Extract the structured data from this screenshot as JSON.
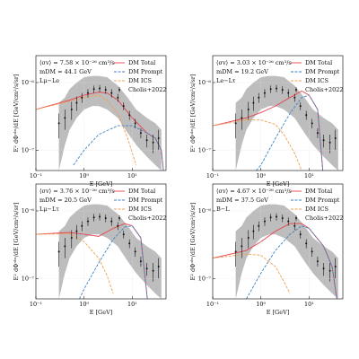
{
  "chart_data": [
    {
      "type": "line",
      "xlabel": "E [GeV]",
      "ylabel": "E² dΦᵒᵇˢ/dE [GeV/cm²/s/sr]",
      "log_x": true,
      "log_y": true,
      "grid": true,
      "legend": "upper right",
      "annotations": [
        "⟨σv⟩ = 7.58 × 10⁻²⁶ cm³/s",
        "mDM = 44.1 GeV",
        "Lμ−Le"
      ],
      "xlim": [
        0.1,
        50
      ],
      "ylim": [
        5e-08,
        2.5e-06
      ],
      "xticks": [
        {
          "value": 0.1,
          "label": "10⁻¹"
        },
        {
          "value": 1,
          "label": "10⁰"
        },
        {
          "value": 10,
          "label": "10¹"
        }
      ],
      "yticks": [
        {
          "value": 1e-07,
          "label": "10⁻⁷"
        },
        {
          "value": 1e-06,
          "label": "10⁻⁶"
        }
      ],
      "band": {
        "color": "#bdbdbd",
        "x": [
          0.3,
          0.4,
          0.5,
          0.7,
          1,
          1.5,
          2,
          3,
          5,
          8,
          12,
          20,
          30,
          40
        ],
        "low": [
          5e-08,
          1.2e-07,
          2e-07,
          3e-07,
          4e-07,
          4.5e-07,
          4.5e-07,
          4e-07,
          3e-07,
          1.8e-07,
          1.2e-07,
          8e-08,
          6e-08,
          5e-08
        ],
        "high": [
          5e-07,
          6e-07,
          8e-07,
          1e-06,
          1.2e-06,
          1.25e-06,
          1.25e-06,
          1.2e-06,
          9e-07,
          6e-07,
          4e-07,
          3e-07,
          2.5e-07,
          2e-07
        ]
      },
      "series": [
        {
          "name": "DM Total",
          "color": "#e8414b",
          "dash": false,
          "x": [
            0.1,
            0.2,
            0.5,
            1,
            2,
            3,
            5,
            10,
            20,
            30,
            40,
            44.1
          ],
          "values": [
            4e-07,
            4.6e-07,
            5.5e-07,
            6.5e-07,
            7.2e-07,
            7e-07,
            5.5e-07,
            3e-07,
            1.8e-07,
            1.5e-07,
            1e-07,
            5e-08
          ]
        },
        {
          "name": "DM Prompt",
          "color": "#3b82c4",
          "dash": true,
          "x": [
            0.6,
            1,
            2,
            5,
            10,
            20,
            30,
            40,
            44.1
          ],
          "values": [
            6e-08,
            1e-07,
            1.7e-07,
            2.3e-07,
            2.3e-07,
            1.8e-07,
            1.5e-07,
            1e-07,
            5e-08
          ]
        },
        {
          "name": "DM ICS",
          "color": "#f0a050",
          "dash": true,
          "x": [
            0.1,
            0.5,
            1,
            2,
            3,
            5,
            8,
            12
          ],
          "values": [
            4e-07,
            5.3e-07,
            6e-07,
            6.5e-07,
            5.5e-07,
            3.5e-07,
            1.5e-07,
            6e-08
          ]
        }
      ],
      "points": {
        "name": "Cholis+2022",
        "color": "#111111",
        "x": [
          0.3,
          0.4,
          0.55,
          0.7,
          0.9,
          1.2,
          1.6,
          2.1,
          2.8,
          3.7,
          5,
          6.6,
          8.7,
          11.5,
          15,
          20,
          27,
          35
        ],
        "values": [
          2.5e-07,
          3e-07,
          4e-07,
          5e-07,
          6e-07,
          7e-07,
          8e-07,
          8.2e-07,
          7.8e-07,
          7e-07,
          6e-07,
          4.5e-07,
          3.3e-07,
          2.5e-07,
          1.8e-07,
          1.4e-07,
          1.3e-07,
          1.5e-07
        ],
        "errors": [
          1e-07,
          1e-07,
          1.2e-07,
          1.2e-07,
          1e-07,
          1e-07,
          1e-07,
          1e-07,
          1e-07,
          1e-07,
          8e-08,
          6e-08,
          5e-08,
          4e-08,
          3e-08,
          3e-08,
          4e-08,
          5e-08
        ]
      }
    },
    {
      "type": "line",
      "xlabel": "E [GeV]",
      "ylabel": "E² dΦᵒᵇˢ/dE [GeV/cm²/s/sr]",
      "log_x": true,
      "log_y": true,
      "grid": true,
      "legend": "upper right",
      "annotations": [
        "⟨σv⟩ = 3.03 × 10⁻²⁶ cm³/s",
        "mDM = 19.2 GeV",
        "Le−Lτ"
      ],
      "xlim": [
        0.1,
        50
      ],
      "ylim": [
        5e-08,
        2.5e-06
      ],
      "xticks": [
        {
          "value": 0.1,
          "label": "10⁻¹"
        },
        {
          "value": 1,
          "label": "10⁰"
        },
        {
          "value": 10,
          "label": "10¹"
        }
      ],
      "yticks": [
        {
          "value": 1e-07,
          "label": "10⁻⁷"
        },
        {
          "value": 1e-06,
          "label": "10⁻⁶"
        }
      ],
      "band": {
        "color": "#bdbdbd",
        "x": [
          0.3,
          0.4,
          0.5,
          0.7,
          1,
          1.5,
          2,
          3,
          5,
          8,
          12,
          20,
          30,
          40
        ],
        "low": [
          5e-08,
          1.2e-07,
          2e-07,
          3e-07,
          4e-07,
          4.5e-07,
          4.5e-07,
          4e-07,
          3e-07,
          1.8e-07,
          1.2e-07,
          8e-08,
          6e-08,
          5e-08
        ],
        "high": [
          5e-07,
          6e-07,
          8e-07,
          1e-06,
          1.2e-06,
          1.25e-06,
          1.25e-06,
          1.2e-06,
          9e-07,
          6e-07,
          4e-07,
          3e-07,
          2.5e-07,
          2e-07
        ]
      },
      "series": [
        {
          "name": "DM Total",
          "color": "#e8414b",
          "dash": false,
          "x": [
            0.1,
            0.5,
            1,
            2,
            4,
            7,
            10,
            15,
            19.2
          ],
          "values": [
            2.3e-07,
            3e-07,
            3.6e-07,
            4.5e-07,
            6e-07,
            7.5e-07,
            6.5e-07,
            4e-07,
            5e-08
          ]
        },
        {
          "name": "DM Prompt",
          "color": "#3b82c4",
          "dash": true,
          "x": [
            0.8,
            1,
            2,
            4,
            7,
            10,
            15,
            19.2
          ],
          "values": [
            5e-08,
            6e-08,
            1.5e-07,
            3.5e-07,
            6e-07,
            6.5e-07,
            4e-07,
            5e-08
          ]
        },
        {
          "name": "DM ICS",
          "color": "#f0a050",
          "dash": true,
          "x": [
            0.1,
            0.5,
            1,
            2,
            3,
            5,
            7
          ],
          "values": [
            2.3e-07,
            2.8e-07,
            2.8e-07,
            2.4e-07,
            1.7e-07,
            9e-08,
            5e-08
          ]
        }
      ],
      "points": {
        "name": "Cholis+2022",
        "color": "#111111",
        "x": [
          0.3,
          0.4,
          0.55,
          0.7,
          0.9,
          1.2,
          1.6,
          2.1,
          2.8,
          3.7,
          5,
          6.6,
          8.7,
          11.5,
          15,
          20,
          27,
          35
        ],
        "values": [
          2.5e-07,
          3e-07,
          4e-07,
          5e-07,
          6e-07,
          7e-07,
          8e-07,
          8.2e-07,
          7.8e-07,
          7e-07,
          6e-07,
          4.5e-07,
          3.3e-07,
          2.5e-07,
          1.8e-07,
          1.4e-07,
          1.3e-07,
          1.5e-07
        ],
        "errors": [
          1e-07,
          1e-07,
          1.2e-07,
          1.2e-07,
          1e-07,
          1e-07,
          1e-07,
          1e-07,
          1e-07,
          1e-07,
          8e-08,
          6e-08,
          5e-08,
          4e-08,
          3e-08,
          3e-08,
          4e-08,
          5e-08
        ]
      }
    },
    {
      "type": "line",
      "xlabel": "E [GeV]",
      "ylabel": "E² dΦᵒᵇˢ/dE [GeV/cm²/s/sr]",
      "log_x": true,
      "log_y": true,
      "grid": true,
      "legend": "upper right",
      "annotations": [
        "⟨σv⟩ = 3.76 × 10⁻²⁶ cm³/s",
        "mDM = 20.5 GeV",
        "Lμ−Lτ"
      ],
      "xlim": [
        0.1,
        50
      ],
      "ylim": [
        5e-08,
        2.5e-06
      ],
      "xticks": [
        {
          "value": 0.1,
          "label": "10⁻¹"
        },
        {
          "value": 1,
          "label": "10⁰"
        },
        {
          "value": 10,
          "label": "10¹"
        }
      ],
      "yticks": [
        {
          "value": 1e-07,
          "label": "10⁻⁷"
        },
        {
          "value": 1e-06,
          "label": "10⁻⁶"
        }
      ],
      "band": {
        "color": "#bdbdbd",
        "x": [
          0.3,
          0.4,
          0.5,
          0.7,
          1,
          1.5,
          2,
          3,
          5,
          8,
          12,
          20,
          30,
          40
        ],
        "low": [
          5e-08,
          1.2e-07,
          2e-07,
          3e-07,
          4e-07,
          4.5e-07,
          4.5e-07,
          4e-07,
          3e-07,
          1.8e-07,
          1.2e-07,
          8e-08,
          6e-08,
          5e-08
        ],
        "high": [
          5e-07,
          6e-07,
          8e-07,
          1e-06,
          1.2e-06,
          1.25e-06,
          1.25e-06,
          1.2e-06,
          9e-07,
          6e-07,
          4e-07,
          3e-07,
          2.5e-07,
          2e-07
        ]
      },
      "series": [
        {
          "name": "DM Total",
          "color": "#e8414b",
          "dash": false,
          "x": [
            0.1,
            0.5,
            1,
            2,
            4,
            7,
            10,
            15,
            20.5
          ],
          "values": [
            4.5e-07,
            4.8e-07,
            4.5e-07,
            4.2e-07,
            5.5e-07,
            6.5e-07,
            6e-07,
            4e-07,
            5e-08
          ]
        },
        {
          "name": "DM Prompt",
          "color": "#3b82c4",
          "dash": true,
          "x": [
            0.8,
            1,
            2,
            4,
            7,
            10,
            15,
            20.5
          ],
          "values": [
            5e-08,
            7e-08,
            1.7e-07,
            3.8e-07,
            5.8e-07,
            6e-07,
            4e-07,
            5e-08
          ]
        },
        {
          "name": "DM ICS",
          "color": "#f0a050",
          "dash": true,
          "x": [
            0.1,
            0.5,
            1,
            2,
            3,
            4
          ],
          "values": [
            4.5e-07,
            4.6e-07,
            3.5e-07,
            2e-07,
            1.1e-07,
            6e-08
          ]
        }
      ],
      "points": {
        "name": "Cholis+2022",
        "color": "#111111",
        "x": [
          0.3,
          0.4,
          0.55,
          0.7,
          0.9,
          1.2,
          1.6,
          2.1,
          2.8,
          3.7,
          5,
          6.6,
          8.7,
          11.5,
          15,
          20,
          27,
          35
        ],
        "values": [
          2.5e-07,
          3e-07,
          4e-07,
          5e-07,
          6e-07,
          7e-07,
          8e-07,
          8.2e-07,
          7.8e-07,
          7e-07,
          6e-07,
          4.5e-07,
          3.3e-07,
          2.5e-07,
          1.8e-07,
          1.4e-07,
          1.3e-07,
          1.5e-07
        ],
        "errors": [
          1e-07,
          1e-07,
          1.2e-07,
          1.2e-07,
          1e-07,
          1e-07,
          1e-07,
          1e-07,
          1e-07,
          1e-07,
          8e-08,
          6e-08,
          5e-08,
          4e-08,
          3e-08,
          3e-08,
          4e-08,
          5e-08
        ]
      }
    },
    {
      "type": "line",
      "xlabel": "E [GeV]",
      "ylabel": "E² dΦᵒᵇˢ/dE [GeV/cm²/s/sr]",
      "log_x": true,
      "log_y": true,
      "grid": true,
      "legend": "upper right",
      "annotations": [
        "⟨σv⟩ = 4.67 × 10⁻²⁶ cm³/s",
        "mDM = 37.5 GeV",
        "B−L"
      ],
      "xlim": [
        0.1,
        50
      ],
      "ylim": [
        5e-08,
        2.5e-06
      ],
      "xticks": [
        {
          "value": 0.1,
          "label": "10⁻¹"
        },
        {
          "value": 1,
          "label": "10⁰"
        },
        {
          "value": 10,
          "label": "10¹"
        }
      ],
      "yticks": [
        {
          "value": 1e-07,
          "label": "10⁻⁷"
        },
        {
          "value": 1e-06,
          "label": "10⁻⁶"
        }
      ],
      "band": {
        "color": "#bdbdbd",
        "x": [
          0.3,
          0.4,
          0.5,
          0.7,
          1,
          1.5,
          2,
          3,
          5,
          8,
          12,
          20,
          30,
          40
        ],
        "low": [
          5e-08,
          1.2e-07,
          2e-07,
          3e-07,
          4e-07,
          4.5e-07,
          4.5e-07,
          4e-07,
          3e-07,
          1.8e-07,
          1.2e-07,
          8e-08,
          6e-08,
          5e-08
        ],
        "high": [
          5e-07,
          6e-07,
          8e-07,
          1e-06,
          1.2e-06,
          1.25e-06,
          1.25e-06,
          1.2e-06,
          9e-07,
          6e-07,
          4e-07,
          3e-07,
          2.5e-07,
          2e-07
        ]
      },
      "series": [
        {
          "name": "DM Total",
          "color": "#e8414b",
          "dash": false,
          "x": [
            0.1,
            0.5,
            1,
            2,
            4,
            7,
            10,
            20,
            30,
            37.5
          ],
          "values": [
            2e-07,
            2.6e-07,
            3.5e-07,
            5e-07,
            6.5e-07,
            6.5e-07,
            5.5e-07,
            3e-07,
            1.5e-07,
            5e-08
          ]
        },
        {
          "name": "DM Prompt",
          "color": "#3b82c4",
          "dash": true,
          "x": [
            0.5,
            1,
            2,
            4,
            7,
            10,
            20,
            30,
            37.5
          ],
          "values": [
            5e-08,
            1.2e-07,
            2.6e-07,
            4.5e-07,
            6e-07,
            5.5e-07,
            3e-07,
            1.5e-07,
            5e-08
          ]
        },
        {
          "name": "DM ICS",
          "color": "#f0a050",
          "dash": true,
          "x": [
            0.1,
            0.5,
            1,
            2,
            3,
            4
          ],
          "values": [
            2e-07,
            2.3e-07,
            2.2e-07,
            1.5e-07,
            9e-08,
            6e-08
          ]
        }
      ],
      "points": {
        "name": "Cholis+2022",
        "color": "#111111",
        "x": [
          0.3,
          0.4,
          0.55,
          0.7,
          0.9,
          1.2,
          1.6,
          2.1,
          2.8,
          3.7,
          5,
          6.6,
          8.7,
          11.5,
          15,
          20,
          27,
          35
        ],
        "values": [
          2.5e-07,
          3e-07,
          4e-07,
          5e-07,
          6e-07,
          7e-07,
          8e-07,
          8.2e-07,
          7.8e-07,
          7e-07,
          6e-07,
          4.5e-07,
          3.3e-07,
          2.5e-07,
          1.8e-07,
          1.4e-07,
          1.3e-07,
          1.5e-07
        ],
        "errors": [
          1e-07,
          1e-07,
          1.2e-07,
          1.2e-07,
          1e-07,
          1e-07,
          1e-07,
          1e-07,
          1e-07,
          1e-07,
          8e-08,
          6e-08,
          5e-08,
          4e-08,
          3e-08,
          3e-08,
          4e-08,
          5e-08
        ]
      }
    }
  ]
}
